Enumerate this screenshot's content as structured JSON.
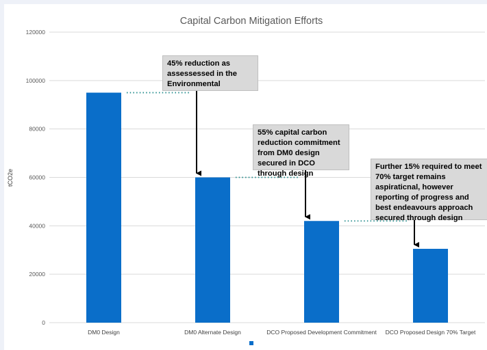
{
  "chart_data": {
    "type": "bar",
    "title": "Capital Carbon Mitigation Efforts",
    "ylabel": "tCO2e",
    "xlabel": "",
    "ylim": [
      0,
      120000
    ],
    "yticks": [
      "0",
      "20000",
      "40000",
      "60000",
      "80000",
      "100000",
      "120000"
    ],
    "categories": [
      "DM0 Design",
      "DM0 Alternate Design",
      "DCO Proposed Development Commitment",
      "DCO Proposed Design 70% Target"
    ],
    "values": [
      95000,
      60000,
      42000,
      30500
    ],
    "bar_color": "#0a6ec9",
    "grid": true,
    "legend": "bottom",
    "annotations": [
      "45% reduction as assessessed in the Environmental",
      "55% capital carbon reduction commitment from DM0 design secured in DCO through design",
      "Further 15% required to meet 70% target remains aspiraticnal, however reporting of progress and best endeavours approach secured through design"
    ]
  }
}
